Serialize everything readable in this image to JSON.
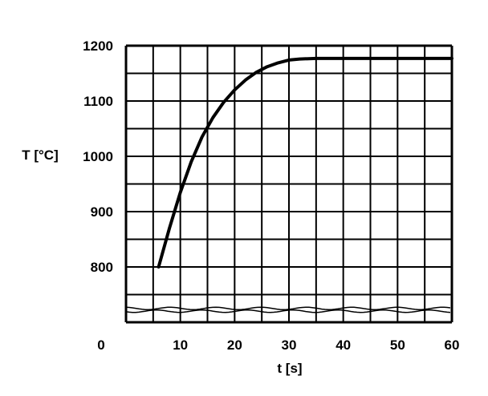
{
  "chart_data": {
    "type": "line",
    "xlabel": "t [s]",
    "ylabel": "T [°C]",
    "xlim": [
      0,
      60
    ],
    "ylim": [
      700,
      1200
    ],
    "grid": true,
    "x_ticks": [
      0,
      10,
      20,
      30,
      40,
      50,
      60
    ],
    "x_tick_labels": [
      "0",
      "10",
      "20",
      "30",
      "40",
      "50",
      "60"
    ],
    "y_ticks": [
      800,
      900,
      1000,
      1100,
      1200
    ],
    "y_tick_labels": [
      "800",
      "900",
      "1000",
      "1100",
      "1200"
    ],
    "series": [
      {
        "x": [
          6,
          8,
          10,
          12,
          14,
          16,
          18,
          20,
          22,
          24,
          26,
          28,
          30,
          32,
          35,
          40,
          45,
          50,
          55,
          60
        ],
        "y": [
          800,
          870,
          935,
          990,
          1035,
          1070,
          1098,
          1120,
          1138,
          1152,
          1162,
          1169,
          1174,
          1176,
          1177,
          1177,
          1177,
          1177,
          1177,
          1177
        ]
      }
    ],
    "colors": {
      "line": "#000000",
      "grid": "#000000",
      "background": "#ffffff"
    }
  }
}
